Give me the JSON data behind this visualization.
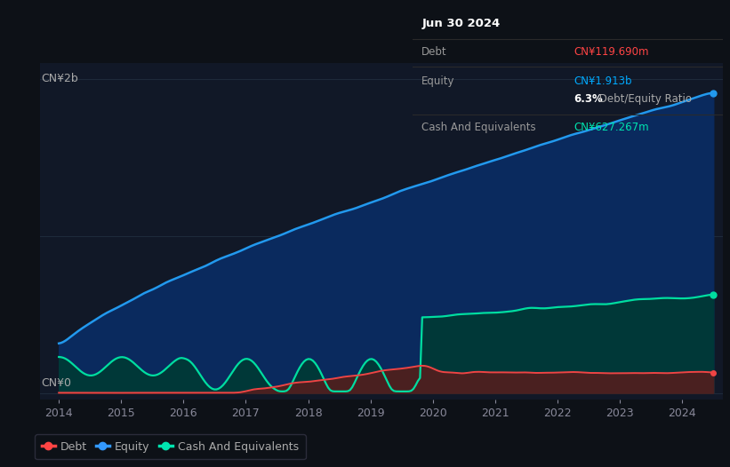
{
  "bg_color": "#0d1117",
  "plot_bg_color": "#111827",
  "title_box": {
    "date": "Jun 30 2024",
    "debt_label": "Debt",
    "debt_value": "CN¥119.690m",
    "debt_color": "#ff4444",
    "equity_label": "Equity",
    "equity_value": "CN¥1.913b",
    "equity_color": "#00aaff",
    "ratio_value": "6.3%",
    "ratio_text": " Debt/Equity Ratio",
    "cash_label": "Cash And Equivalents",
    "cash_value": "CN¥627.267m",
    "cash_color": "#00e5b0"
  },
  "ylabel_top": "CN¥2b",
  "ylabel_bottom": "CN¥0",
  "x_ticks": [
    2014,
    2015,
    2016,
    2017,
    2018,
    2019,
    2020,
    2021,
    2022,
    2023,
    2024
  ],
  "legend": [
    {
      "label": "Debt",
      "color": "#ff4444"
    },
    {
      "label": "Equity",
      "color": "#3399ff"
    },
    {
      "label": "Cash And Equivalents",
      "color": "#00e5b0"
    }
  ],
  "equity_line_color": "#2299ee",
  "equity_fill_color": "#0a2a5e",
  "debt_line_color": "#ee4444",
  "debt_fill_color": "#4a2020",
  "cash_line_color": "#00dda0",
  "cash_fill_color": "#003838",
  "grid_color": "#1e2a3a",
  "text_color": "#aaaaaa",
  "axis_text_color": "#888899"
}
